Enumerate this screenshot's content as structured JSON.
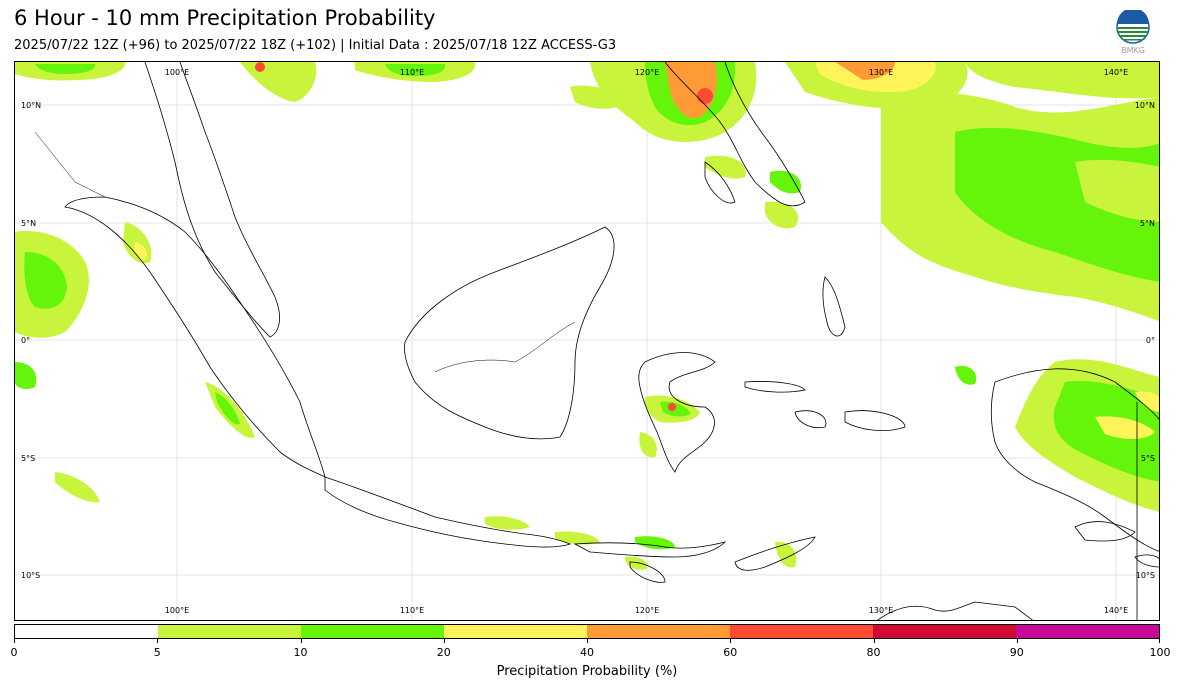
{
  "header": {
    "title": "6 Hour - 10 mm Precipitation Probability",
    "subtitle": "2025/07/22 12Z (+96) to 2025/07/22 18Z (+102) | Initial Data : 2025/07/18 12Z ACCESS-G3",
    "logo_text": "BMKG"
  },
  "map": {
    "region": "Indonesia",
    "lon_labels": [
      "100°E",
      "110°E",
      "120°E",
      "130°E",
      "140°E"
    ],
    "lat_labels": [
      "10°N",
      "5°N",
      "0°",
      "5°S",
      "10°S"
    ],
    "lon_range": [
      93.5,
      142.5
    ],
    "lat_range": [
      -12,
      12
    ],
    "grid": true
  },
  "colorbar": {
    "label": "Precipitation Probability (%)",
    "ticks": [
      "0",
      "5",
      "10",
      "20",
      "40",
      "60",
      "80",
      "90",
      "100"
    ],
    "colors": [
      "#ffffff",
      "#c8f53c",
      "#64f50a",
      "#fff55a",
      "#ff9b37",
      "#ff4b32",
      "#d20a32",
      "#c80a9b"
    ]
  }
}
